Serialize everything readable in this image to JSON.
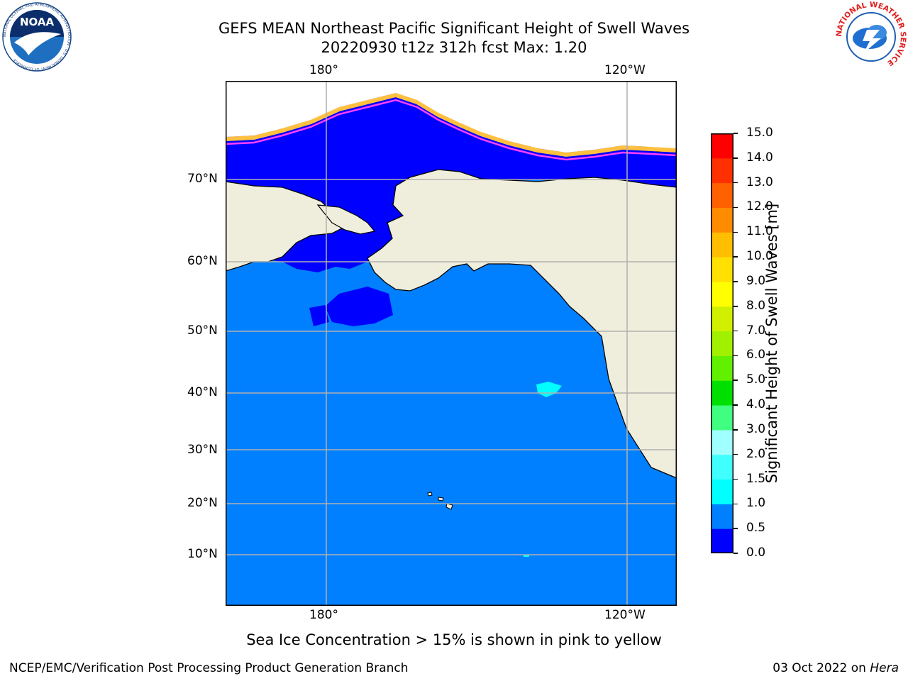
{
  "header": {
    "title_line1": "GEFS MEAN Northeast Pacific Significant Height of Swell Waves",
    "title_line2": "20220930 t12z 312h fcst   Max: 1.20"
  },
  "logos": {
    "left": "NOAA",
    "left_ring_text": "NATIONAL OCEANIC AND ATMOSPHERIC ADMINISTRATION · U.S. DEPARTMENT OF COMMERCE",
    "right_ring_text": "NATIONAL WEATHER SERVICE"
  },
  "map": {
    "lon_labels_top": [
      "180°",
      "120°W"
    ],
    "lon_labels_bottom": [
      "180°",
      "120°W"
    ],
    "lat_labels": [
      "70°N",
      "60°N",
      "50°N",
      "40°N",
      "30°N",
      "20°N",
      "10°N"
    ],
    "colors": {
      "ocean_low": "#0000ff",
      "ocean_mid": "#0080ff",
      "ocean_high": "#00ffff",
      "land": "#efeedc",
      "ice_pink": "#ff40ff",
      "ice_yellow": "#ffc040",
      "grid": "#b0b0b0"
    }
  },
  "colorbar": {
    "title": "Significant Height of Swell Waves [m]",
    "levels": [
      "0.0",
      "0.5",
      "1.0",
      "1.5",
      "2.0",
      "3.0",
      "4.0",
      "5.0",
      "6.0",
      "7.0",
      "8.0",
      "9.0",
      "10.0",
      "11.0",
      "12.0",
      "13.0",
      "14.0",
      "15.0"
    ],
    "colors": [
      "#0000ff",
      "#0080ff",
      "#00ffff",
      "#40ffff",
      "#a0ffff",
      "#40ff80",
      "#00e000",
      "#60f000",
      "#a0f000",
      "#d0f000",
      "#ffff00",
      "#ffe000",
      "#ffbe00",
      "#ff8c00",
      "#ff6000",
      "#ff3000",
      "#ff0000"
    ]
  },
  "annotation": "Sea Ice Concentration > 15% is shown in pink to yellow",
  "footer": {
    "left": "NCEP/EMC/Verification Post Processing Product Generation Branch",
    "right_date": "03 Oct 2022 on ",
    "right_host": "Hera"
  }
}
